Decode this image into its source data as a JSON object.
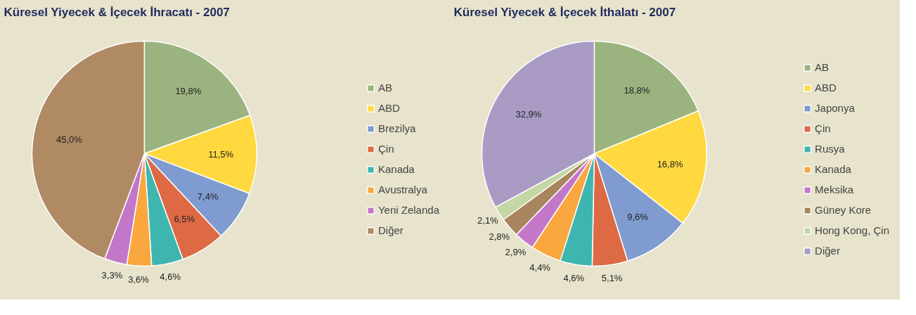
{
  "chart_data": [
    {
      "type": "pie",
      "title": "Küresel Yiyecek & İçecek İhracatı - 2007",
      "categories": [
        "AB",
        "ABD",
        "Brezilya",
        "Çin",
        "Kanada",
        "Avustralya",
        "Yeni Zelanda",
        "Diğer"
      ],
      "values": [
        19.8,
        11.5,
        7.4,
        6.5,
        4.6,
        3.6,
        3.3,
        45.0
      ],
      "value_labels": [
        "19,8%",
        "11,5%",
        "7,4%",
        "6,5%",
        "4,6%",
        "3,6%",
        "3,3%",
        "45,0%"
      ],
      "colors": [
        "#9bb37e",
        "#ffd93f",
        "#7f9bcf",
        "#dd6a45",
        "#3fb5b0",
        "#f9a73e",
        "#c377c9",
        "#b08a63"
      ],
      "legend": "right"
    },
    {
      "type": "pie",
      "title": "Küresel Yiyecek & İçecek İthalatı - 2007",
      "categories": [
        "AB",
        "ABD",
        "Japonya",
        "Çin",
        "Rusya",
        "Kanada",
        "Meksika",
        "Güney Kore",
        "Hong Kong, Çin",
        "Diğer"
      ],
      "values": [
        18.8,
        16.8,
        9.6,
        5.1,
        4.6,
        4.4,
        2.9,
        2.8,
        2.1,
        32.9
      ],
      "value_labels": [
        "18,8%",
        "16,8%",
        "9,6%",
        "5,1%",
        "4,6%",
        "4,4%",
        "2,9%",
        "2,8%",
        "2,1%",
        "32,9%"
      ],
      "colors": [
        "#9bb37e",
        "#ffd93f",
        "#7f9bcf",
        "#dd6a45",
        "#3fb5b0",
        "#f9a73e",
        "#c377c9",
        "#a8845f",
        "#c4d7a4",
        "#a99bc4"
      ],
      "legend": "right"
    }
  ]
}
